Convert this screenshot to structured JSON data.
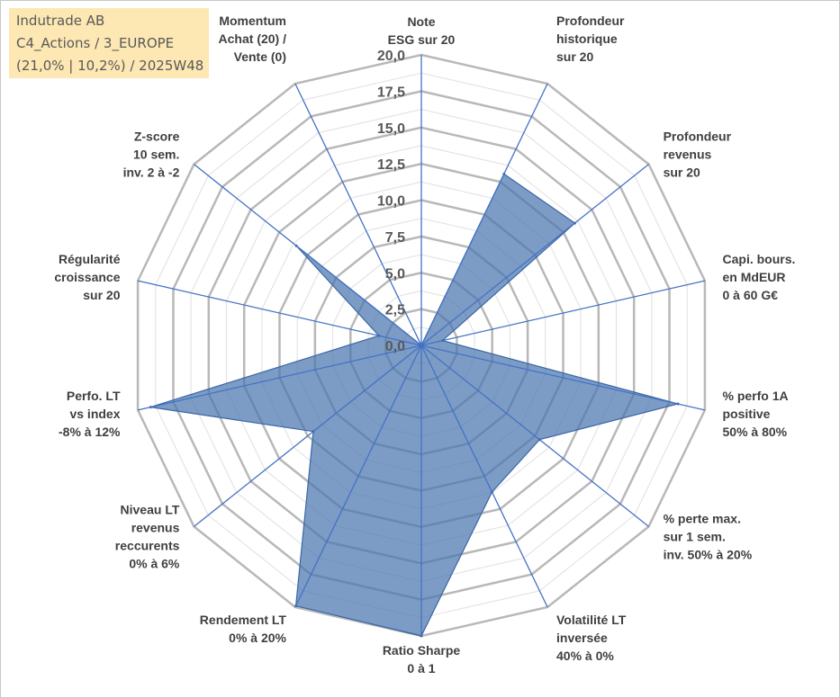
{
  "header": {
    "line1": "Indutrade AB",
    "line2": "C4_Actions / 3_EUROPE",
    "line3": "(21,0% | 10,2%) / 2025W48"
  },
  "colors": {
    "area_fill": "#4a76b0",
    "area_stroke": "#3a66a5",
    "spoke": "#4472c4",
    "grid_major": "#b8b8b8",
    "grid_minor": "#e4e4e4"
  },
  "chart_data": {
    "type": "radar",
    "rmin": 0,
    "rmax": 20,
    "tick_labels": [
      "0,0",
      "2,5",
      "5,0",
      "7,5",
      "10,0",
      "12,5",
      "15,0",
      "17,5",
      "20,0"
    ],
    "grid": true,
    "categories": [
      [
        "Note",
        "ESG sur 20"
      ],
      [
        "Profondeur",
        "historique",
        "sur 20"
      ],
      [
        "Profondeur",
        "revenus",
        "sur 20"
      ],
      [
        "Capi. bours.",
        "en MdEUR",
        "0 à 60 G€"
      ],
      [
        "% perfo 1A",
        "positive",
        "50% à 80%"
      ],
      [
        "% perte max.",
        "sur 1 sem.",
        "inv. 50% à 20%"
      ],
      [
        "Volatilité LT",
        "inversée",
        "40% à 0%"
      ],
      [
        "Ratio Sharpe",
        "0 à 1"
      ],
      [
        "Rendement LT",
        "0% à 20%"
      ],
      [
        "Niveau LT",
        "revenus",
        "reccurents",
        "0% à 6%"
      ],
      [
        "Perfo. LT",
        "vs index",
        "-8% à 12%"
      ],
      [
        "Régularité",
        "croissance",
        "sur 20"
      ],
      [
        "Z-score",
        "10 sem.",
        "inv. 2 à -2"
      ],
      [
        "Momentum",
        "Achat (20) /",
        "Vente (0)"
      ]
    ],
    "values": [
      0,
      13.1,
      13.5,
      1.5,
      18.1,
      10.4,
      11.2,
      20.0,
      19.9,
      9.5,
      19.1,
      3.0,
      11.0,
      0
    ]
  }
}
